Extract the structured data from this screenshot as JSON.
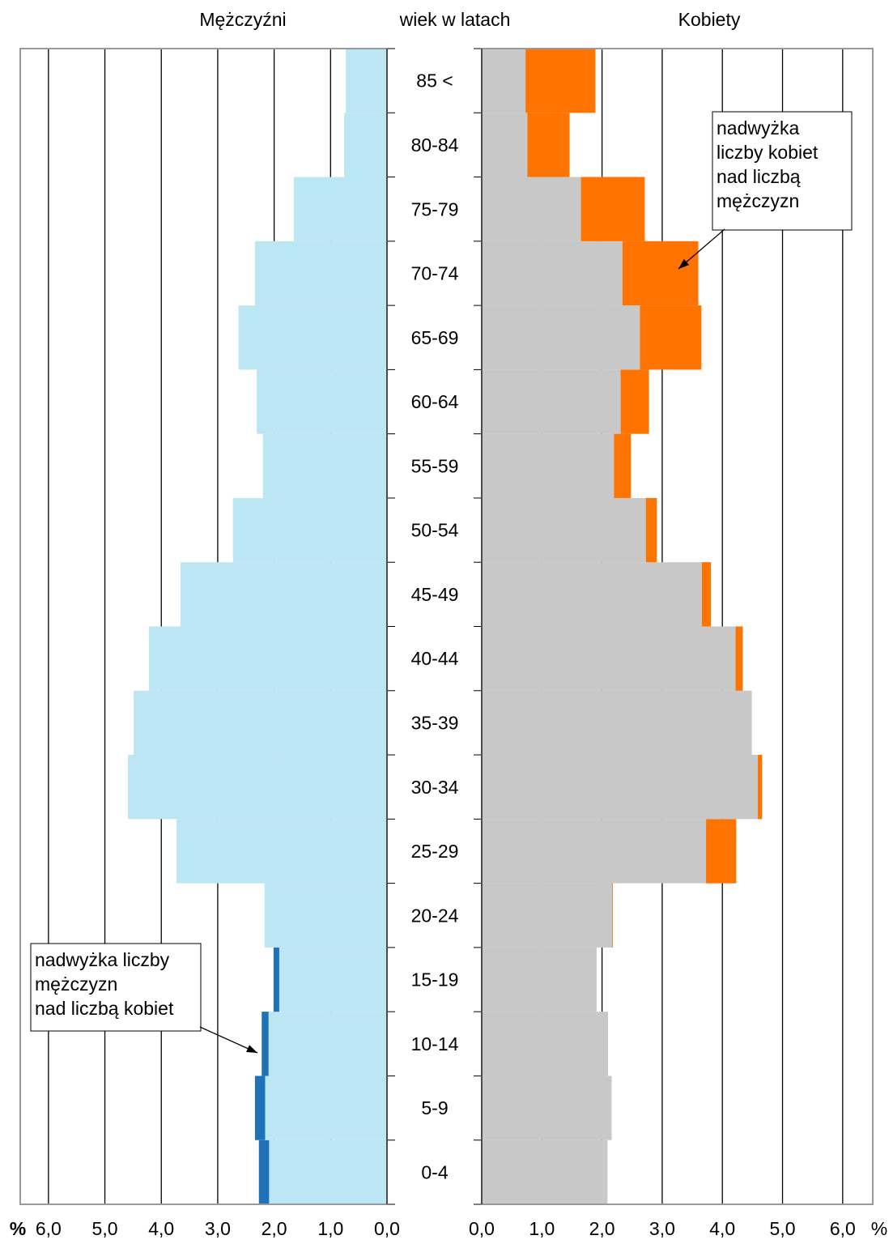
{
  "chart_data": {
    "type": "population-pyramid",
    "axis_title": "wiek w latach",
    "x_unit": "%",
    "categories": [
      "0-4",
      "5-9",
      "10-14",
      "15-19",
      "20-24",
      "25-29",
      "30-34",
      "35-39",
      "40-44",
      "45-49",
      "50-54",
      "55-59",
      "60-64",
      "65-69",
      "70-74",
      "75-79",
      "80-84",
      "85 <"
    ],
    "series": [
      {
        "name": "Mężczyźni",
        "color": "#bde6f4",
        "excess_color": "#1f72b8",
        "values": [
          2.27,
          2.34,
          2.22,
          2.01,
          2.17,
          3.73,
          4.59,
          4.49,
          4.22,
          3.66,
          2.73,
          2.2,
          2.31,
          2.63,
          2.34,
          1.65,
          0.76,
          0.73
        ]
      },
      {
        "name": "Kobiety",
        "color": "#c8c8c8",
        "excess_color": "#ff7300",
        "values": [
          2.09,
          2.16,
          2.1,
          1.91,
          2.18,
          4.23,
          4.66,
          4.49,
          4.34,
          3.81,
          2.91,
          2.48,
          2.78,
          3.65,
          3.6,
          2.71,
          1.46,
          1.89
        ]
      }
    ],
    "xlim": [
      0,
      6.5
    ],
    "xticks": [
      {
        "value": 0,
        "label": "0,0"
      },
      {
        "value": 1,
        "label": "1,0"
      },
      {
        "value": 2,
        "label": "2,0"
      },
      {
        "value": 3,
        "label": "3,0"
      },
      {
        "value": 4,
        "label": "4,0"
      },
      {
        "value": 5,
        "label": "5,0"
      },
      {
        "value": 6,
        "label": "6,0"
      }
    ],
    "grid": true,
    "annotations": [
      {
        "lines": [
          "nadwyżka",
          "liczby kobiet",
          "nad liczbą",
          "mężczyzn"
        ]
      },
      {
        "lines": [
          "nadwyżka liczby",
          "mężczyzn",
          "nad liczbą kobiet"
        ]
      }
    ]
  }
}
